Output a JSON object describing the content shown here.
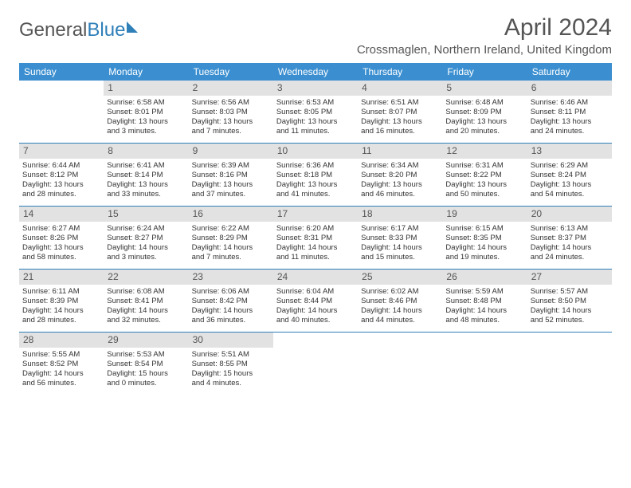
{
  "logo": {
    "part1": "General",
    "part2": "Blue"
  },
  "title": "April 2024",
  "location": "Crossmaglen, Northern Ireland, United Kingdom",
  "colors": {
    "header_bg": "#3b8fd0",
    "accent": "#2f7fb8",
    "daynum_bg": "#e2e2e2",
    "text": "#333333",
    "muted": "#555555",
    "background": "#ffffff"
  },
  "day_headers": [
    "Sunday",
    "Monday",
    "Tuesday",
    "Wednesday",
    "Thursday",
    "Friday",
    "Saturday"
  ],
  "weeks": [
    [
      null,
      {
        "n": "1",
        "sr": "Sunrise: 6:58 AM",
        "ss": "Sunset: 8:01 PM",
        "d1": "Daylight: 13 hours",
        "d2": "and 3 minutes."
      },
      {
        "n": "2",
        "sr": "Sunrise: 6:56 AM",
        "ss": "Sunset: 8:03 PM",
        "d1": "Daylight: 13 hours",
        "d2": "and 7 minutes."
      },
      {
        "n": "3",
        "sr": "Sunrise: 6:53 AM",
        "ss": "Sunset: 8:05 PM",
        "d1": "Daylight: 13 hours",
        "d2": "and 11 minutes."
      },
      {
        "n": "4",
        "sr": "Sunrise: 6:51 AM",
        "ss": "Sunset: 8:07 PM",
        "d1": "Daylight: 13 hours",
        "d2": "and 16 minutes."
      },
      {
        "n": "5",
        "sr": "Sunrise: 6:48 AM",
        "ss": "Sunset: 8:09 PM",
        "d1": "Daylight: 13 hours",
        "d2": "and 20 minutes."
      },
      {
        "n": "6",
        "sr": "Sunrise: 6:46 AM",
        "ss": "Sunset: 8:11 PM",
        "d1": "Daylight: 13 hours",
        "d2": "and 24 minutes."
      }
    ],
    [
      {
        "n": "7",
        "sr": "Sunrise: 6:44 AM",
        "ss": "Sunset: 8:12 PM",
        "d1": "Daylight: 13 hours",
        "d2": "and 28 minutes."
      },
      {
        "n": "8",
        "sr": "Sunrise: 6:41 AM",
        "ss": "Sunset: 8:14 PM",
        "d1": "Daylight: 13 hours",
        "d2": "and 33 minutes."
      },
      {
        "n": "9",
        "sr": "Sunrise: 6:39 AM",
        "ss": "Sunset: 8:16 PM",
        "d1": "Daylight: 13 hours",
        "d2": "and 37 minutes."
      },
      {
        "n": "10",
        "sr": "Sunrise: 6:36 AM",
        "ss": "Sunset: 8:18 PM",
        "d1": "Daylight: 13 hours",
        "d2": "and 41 minutes."
      },
      {
        "n": "11",
        "sr": "Sunrise: 6:34 AM",
        "ss": "Sunset: 8:20 PM",
        "d1": "Daylight: 13 hours",
        "d2": "and 46 minutes."
      },
      {
        "n": "12",
        "sr": "Sunrise: 6:31 AM",
        "ss": "Sunset: 8:22 PM",
        "d1": "Daylight: 13 hours",
        "d2": "and 50 minutes."
      },
      {
        "n": "13",
        "sr": "Sunrise: 6:29 AM",
        "ss": "Sunset: 8:24 PM",
        "d1": "Daylight: 13 hours",
        "d2": "and 54 minutes."
      }
    ],
    [
      {
        "n": "14",
        "sr": "Sunrise: 6:27 AM",
        "ss": "Sunset: 8:26 PM",
        "d1": "Daylight: 13 hours",
        "d2": "and 58 minutes."
      },
      {
        "n": "15",
        "sr": "Sunrise: 6:24 AM",
        "ss": "Sunset: 8:27 PM",
        "d1": "Daylight: 14 hours",
        "d2": "and 3 minutes."
      },
      {
        "n": "16",
        "sr": "Sunrise: 6:22 AM",
        "ss": "Sunset: 8:29 PM",
        "d1": "Daylight: 14 hours",
        "d2": "and 7 minutes."
      },
      {
        "n": "17",
        "sr": "Sunrise: 6:20 AM",
        "ss": "Sunset: 8:31 PM",
        "d1": "Daylight: 14 hours",
        "d2": "and 11 minutes."
      },
      {
        "n": "18",
        "sr": "Sunrise: 6:17 AM",
        "ss": "Sunset: 8:33 PM",
        "d1": "Daylight: 14 hours",
        "d2": "and 15 minutes."
      },
      {
        "n": "19",
        "sr": "Sunrise: 6:15 AM",
        "ss": "Sunset: 8:35 PM",
        "d1": "Daylight: 14 hours",
        "d2": "and 19 minutes."
      },
      {
        "n": "20",
        "sr": "Sunrise: 6:13 AM",
        "ss": "Sunset: 8:37 PM",
        "d1": "Daylight: 14 hours",
        "d2": "and 24 minutes."
      }
    ],
    [
      {
        "n": "21",
        "sr": "Sunrise: 6:11 AM",
        "ss": "Sunset: 8:39 PM",
        "d1": "Daylight: 14 hours",
        "d2": "and 28 minutes."
      },
      {
        "n": "22",
        "sr": "Sunrise: 6:08 AM",
        "ss": "Sunset: 8:41 PM",
        "d1": "Daylight: 14 hours",
        "d2": "and 32 minutes."
      },
      {
        "n": "23",
        "sr": "Sunrise: 6:06 AM",
        "ss": "Sunset: 8:42 PM",
        "d1": "Daylight: 14 hours",
        "d2": "and 36 minutes."
      },
      {
        "n": "24",
        "sr": "Sunrise: 6:04 AM",
        "ss": "Sunset: 8:44 PM",
        "d1": "Daylight: 14 hours",
        "d2": "and 40 minutes."
      },
      {
        "n": "25",
        "sr": "Sunrise: 6:02 AM",
        "ss": "Sunset: 8:46 PM",
        "d1": "Daylight: 14 hours",
        "d2": "and 44 minutes."
      },
      {
        "n": "26",
        "sr": "Sunrise: 5:59 AM",
        "ss": "Sunset: 8:48 PM",
        "d1": "Daylight: 14 hours",
        "d2": "and 48 minutes."
      },
      {
        "n": "27",
        "sr": "Sunrise: 5:57 AM",
        "ss": "Sunset: 8:50 PM",
        "d1": "Daylight: 14 hours",
        "d2": "and 52 minutes."
      }
    ],
    [
      {
        "n": "28",
        "sr": "Sunrise: 5:55 AM",
        "ss": "Sunset: 8:52 PM",
        "d1": "Daylight: 14 hours",
        "d2": "and 56 minutes."
      },
      {
        "n": "29",
        "sr": "Sunrise: 5:53 AM",
        "ss": "Sunset: 8:54 PM",
        "d1": "Daylight: 15 hours",
        "d2": "and 0 minutes."
      },
      {
        "n": "30",
        "sr": "Sunrise: 5:51 AM",
        "ss": "Sunset: 8:55 PM",
        "d1": "Daylight: 15 hours",
        "d2": "and 4 minutes."
      },
      null,
      null,
      null,
      null
    ]
  ]
}
